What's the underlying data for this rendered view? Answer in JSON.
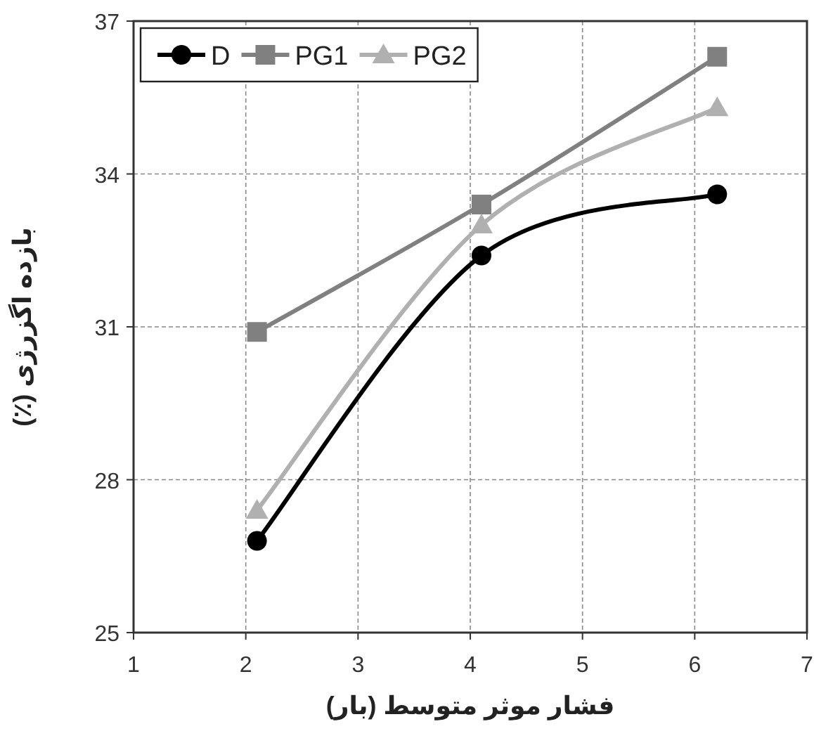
{
  "chart_data": {
    "type": "line",
    "xlabel": "فشار موثر متوسط (بار)",
    "ylabel": "بازده اگزرژی (٪)",
    "x": [
      2.1,
      4.1,
      6.2
    ],
    "series": [
      {
        "name": "D",
        "color": "#000000",
        "marker": "circle",
        "values": [
          26.8,
          32.4,
          33.6
        ]
      },
      {
        "name": "PG1",
        "color": "#808080",
        "marker": "square",
        "values": [
          30.9,
          33.4,
          36.3
        ]
      },
      {
        "name": "PG2",
        "color": "#b0b0b0",
        "marker": "triangle",
        "values": [
          27.4,
          33.0,
          35.3
        ]
      }
    ],
    "xlim": [
      1,
      7
    ],
    "xticks": [
      1,
      2,
      3,
      4,
      5,
      6,
      7
    ],
    "ylim": [
      25,
      37
    ],
    "yticks": [
      25,
      28,
      31,
      34,
      37
    ],
    "grid": true,
    "legend": "top left",
    "line_style": "solid"
  }
}
